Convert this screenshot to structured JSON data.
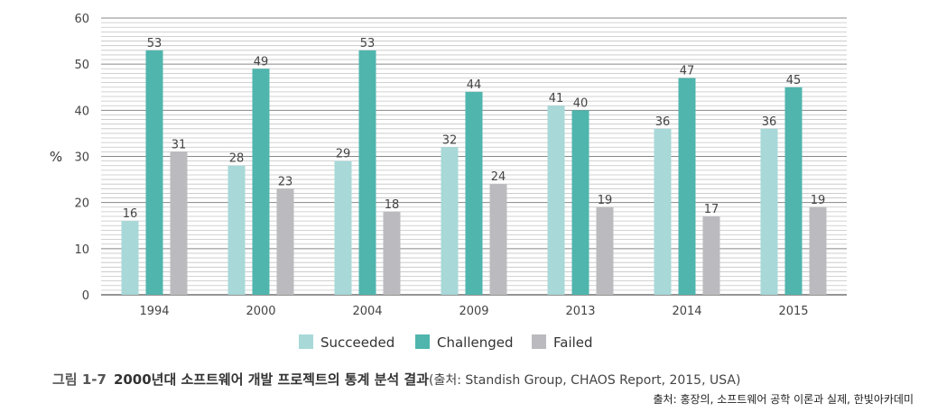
{
  "chart_data": {
    "type": "bar",
    "ylabel": "%",
    "ylim": [
      0,
      60
    ],
    "yticks": [
      0,
      10,
      20,
      30,
      40,
      50,
      60
    ],
    "grid": true,
    "legend_position": "bottom-center",
    "categories": [
      "1994",
      "2000",
      "2004",
      "2009",
      "2013",
      "2014",
      "2015"
    ],
    "series": [
      {
        "name": "Succeeded",
        "color": "#a8d8d8",
        "values": [
          16,
          28,
          29,
          32,
          41,
          36,
          36
        ]
      },
      {
        "name": "Challenged",
        "color": "#4fb5ad",
        "values": [
          53,
          49,
          53,
          44,
          40,
          47,
          45
        ]
      },
      {
        "name": "Failed",
        "color": "#bbbbbf",
        "values": [
          31,
          23,
          18,
          24,
          19,
          17,
          19
        ]
      }
    ]
  },
  "caption": {
    "figure_number": "그림 1-7",
    "title": "2000년대 소프트웨어 개발 프로젝트의 통계 분석 결과",
    "source": "(출처: Standish Group, CHAOS Report, 2015, USA)"
  },
  "credit": "출처: 홍장의, 소프트웨어 공학 이론과 실제, 한빛아카데미"
}
